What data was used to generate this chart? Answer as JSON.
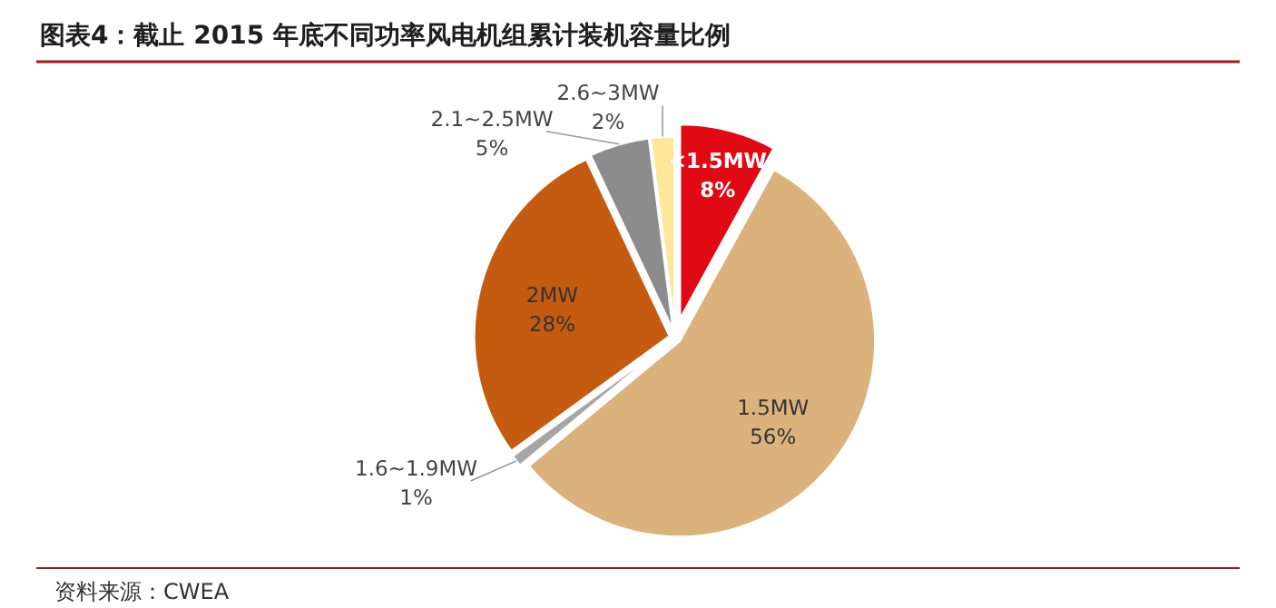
{
  "chart_data": {
    "type": "pie",
    "title": "图表4：截止 2015 年底不同功率风电机组累计装机容量比例",
    "categories": [
      "<1.5MW",
      "1.5MW",
      "1.6~1.9MW",
      "2MW",
      "2.1~2.5MW",
      "2.6~3MW"
    ],
    "values": [
      8,
      56,
      1,
      28,
      5,
      2
    ],
    "colors": [
      "#e00914",
      "#dcb27c",
      "#a6a6a6",
      "#c55a11",
      "#8c8c8c",
      "#ffe699"
    ],
    "value_labels": [
      "8%",
      "56%",
      "1%",
      "28%",
      "5%",
      "2%"
    ],
    "annotations": [
      "资料来源：CWEA"
    ]
  }
}
